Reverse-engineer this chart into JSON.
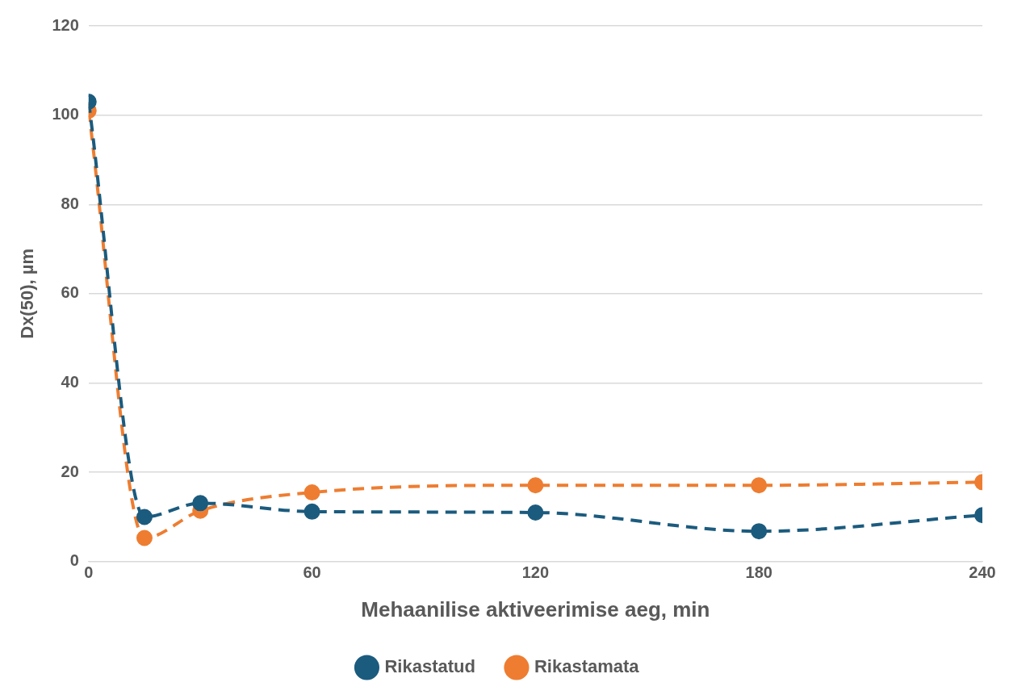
{
  "chart_data": {
    "type": "line",
    "xlabel": "Mehaanilise aktiveerimise aeg, min",
    "ylabel": "Dx(50), µm",
    "x": [
      0,
      15,
      30,
      60,
      120,
      180,
      240
    ],
    "series": [
      {
        "name": "Rikastatud",
        "color": "#1b5b7e",
        "values": [
          103,
          10,
          13.1,
          11.2,
          11,
          6.8,
          10.4
        ]
      },
      {
        "name": "Rikastamata",
        "color": "#ee7d31",
        "values": [
          101,
          5.3,
          11.4,
          15.5,
          17.1,
          17.1,
          17.8
        ]
      }
    ],
    "xlim": [
      0,
      240
    ],
    "xticks": [
      0,
      60,
      120,
      180,
      240
    ],
    "ylim": [
      0,
      120
    ],
    "yticks": [
      0,
      20,
      40,
      60,
      80,
      100,
      120
    ],
    "grid": "y",
    "legend": "bottom",
    "marker": "circle",
    "line_style": "dashed"
  }
}
